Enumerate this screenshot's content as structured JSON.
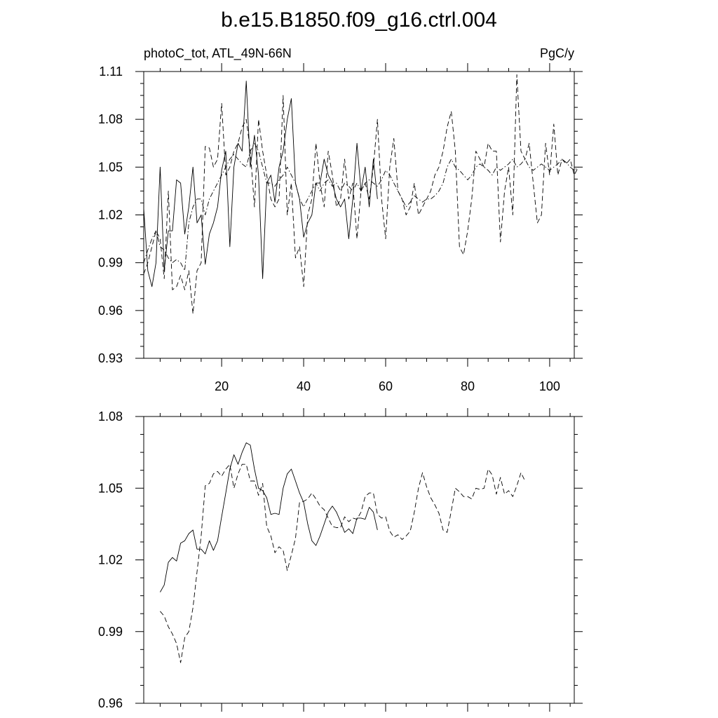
{
  "figure": {
    "title": "b.e15.B1850.f09_g16.ctrl.004"
  },
  "chart_data": [
    {
      "type": "line",
      "title": "b.e15.B1850.f09_g16.ctrl.004",
      "subtitle_left": "photoC_tot, ATL_49N-66N",
      "subtitle_right": "PgC/y",
      "xlabel": "",
      "ylabel": "",
      "xlim": [
        1,
        106
      ],
      "ylim": [
        0.93,
        1.11
      ],
      "x_ticks": [
        20,
        40,
        60,
        80,
        100
      ],
      "x_tick_labels": [
        "20",
        "40",
        "60",
        "80",
        "100"
      ],
      "y_ticks": [
        0.93,
        0.96,
        0.99,
        1.02,
        1.05,
        1.08,
        1.11
      ],
      "y_tick_labels": [
        "0.93",
        "0.96",
        "0.99",
        "1.02",
        "1.05",
        "1.08",
        "1.11"
      ],
      "grid": false,
      "legend": "none",
      "series": [
        {
          "style": "solid",
          "x_start": 1,
          "values": [
            1.024,
            0.985,
            0.975,
            0.99,
            1.05,
            0.985,
            1.01,
            1.01,
            1.042,
            1.04,
            1.008,
            1.025,
            1.05,
            1.015,
            1.02,
            0.989,
            1.008,
            1.015,
            1.025,
            1.048,
            1.06,
            1.0,
            1.05,
            1.065,
            1.06,
            1.104,
            1.05,
            1.07,
            1.045,
            0.98,
            1.04,
            1.045,
            1.028,
            1.05,
            1.06,
            1.08,
            1.093,
            1.04,
            1.03,
            1.006,
            1.015,
            1.02,
            1.04,
            1.04,
            1.055,
            1.045,
            1.04,
            1.03,
            1.025,
            1.03,
            1.005,
            1.03,
            1.065,
            1.035,
            1.05,
            1.025,
            1.055,
            1.03
          ]
        },
        {
          "style": "dashed",
          "x_start": 1,
          "values": [
            0.983,
            0.99,
            1.0,
            1.01,
            1.005,
            0.98,
            1.035,
            0.973,
            0.975,
            0.982,
            0.973,
            0.985,
            0.958,
            0.985,
            0.99,
            1.063,
            1.062,
            1.05,
            1.055,
            1.09,
            1.045,
            1.05,
            1.06,
            1.065,
            1.075,
            1.08,
            1.06,
            1.025,
            1.08,
            1.06,
            1.045,
            1.03,
            1.025,
            1.03,
            1.095,
            1.02,
            1.04,
            0.993,
            1.0,
            0.975,
            1.02,
            1.03,
            1.065,
            1.04,
            1.025,
            1.06,
            1.045,
            1.025,
            1.03,
            1.055,
            1.03,
            1.04,
            1.005,
            1.035,
            1.04,
            1.03,
            1.05,
            1.08,
            1.03,
            1.005,
            1.05,
            1.068,
            1.035,
            1.03,
            1.02,
            1.025,
            1.04,
            1.02,
            1.025,
            1.03,
            1.035,
            1.045,
            1.05,
            1.06,
            1.075,
            1.085,
            1.06,
            1.0,
            0.995,
            1.01,
            1.03,
            1.06,
            1.055,
            1.05,
            1.065,
            1.06,
            1.06,
            1.003,
            1.035,
            1.05,
            1.02,
            1.108,
            1.06,
            1.055,
            1.065,
            1.04,
            1.015,
            1.02,
            1.065,
            1.045,
            1.077,
            1.045,
            1.055,
            1.052,
            1.055,
            1.045,
            1.05
          ]
        },
        {
          "style": "dash-dot",
          "x_start": 1,
          "values": [
            0.99,
            0.998,
            1.005,
            1.01,
            1.0,
            0.998,
            0.993,
            0.99,
            0.992,
            0.99,
            0.985,
            1.015,
            1.025,
            1.03,
            1.03,
            1.02,
            1.03,
            1.035,
            1.04,
            1.045,
            1.05,
            1.055,
            1.058,
            1.055,
            1.052,
            1.05,
            1.06,
            1.065,
            1.06,
            1.05,
            1.04,
            1.04,
            1.038,
            1.042,
            1.045,
            1.05,
            1.045,
            1.04,
            1.03,
            1.025,
            1.03,
            1.035,
            1.04,
            1.035,
            1.04,
            1.042,
            1.038,
            1.04,
            1.035,
            1.04,
            1.038,
            1.035,
            1.04,
            1.035,
            1.04,
            1.042,
            1.04,
            1.038,
            1.042,
            1.048,
            1.045,
            1.04,
            1.035,
            1.03,
            1.025,
            1.028,
            1.032,
            1.03,
            1.028,
            1.03,
            1.03,
            1.032,
            1.035,
            1.04,
            1.05,
            1.055,
            1.05,
            1.048,
            1.045,
            1.042,
            1.045,
            1.05,
            1.052,
            1.05,
            1.048,
            1.045,
            1.05,
            1.048,
            1.05,
            1.052,
            1.055,
            1.05,
            1.052,
            1.055,
            1.05,
            1.048,
            1.05,
            1.052,
            1.05,
            1.048,
            1.05,
            1.052,
            1.055,
            1.053,
            1.05,
            1.048,
            1.05
          ]
        }
      ]
    },
    {
      "type": "line",
      "title": "",
      "xlabel": "",
      "ylabel": "",
      "xlim": [
        1,
        106
      ],
      "ylim": [
        0.96,
        1.08
      ],
      "x_ticks": [
        20,
        40,
        60,
        80,
        100
      ],
      "x_tick_labels": [],
      "y_ticks": [
        0.96,
        0.99,
        1.02,
        1.05,
        1.08
      ],
      "y_tick_labels": [
        "0.96",
        "0.99",
        "1.02",
        "1.05",
        "1.08"
      ],
      "grid": false,
      "legend": "none",
      "series": [
        {
          "style": "solid",
          "x_start": 5,
          "values": [
            1.0065,
            1.0095,
            1.019,
            1.021,
            1.0195,
            1.027,
            1.028,
            1.031,
            1.0325,
            1.0245,
            1.0245,
            1.0225,
            1.028,
            1.024,
            1.028,
            1.038,
            1.048,
            1.058,
            1.064,
            1.06,
            1.065,
            1.069,
            1.068,
            1.058,
            1.05,
            1.049,
            1.046,
            1.039,
            1.0395,
            1.039,
            1.05,
            1.056,
            1.058,
            1.053,
            1.048,
            1.044,
            1.035,
            1.028,
            1.026,
            1.03,
            1.035,
            1.04,
            1.0425,
            1.04,
            1.036,
            1.0315,
            1.033,
            1.031,
            1.0375,
            1.0375,
            1.037,
            1.042,
            1.04,
            1.0325
          ]
        },
        {
          "style": "dashed",
          "x_start": 5,
          "values": [
            0.9985,
            0.9965,
            0.992,
            0.989,
            0.985,
            0.977,
            0.9875,
            0.99,
            1.0,
            1.015,
            1.03,
            1.051,
            1.052,
            1.056,
            1.057,
            1.055,
            1.058,
            1.06,
            1.05,
            1.056,
            1.06,
            1.06,
            1.053,
            1.053,
            1.047,
            1.052,
            1.034,
            1.03,
            1.023,
            1.0255,
            1.024,
            1.0155,
            1.022,
            1.029,
            1.044,
            1.0445,
            1.0455,
            1.048,
            1.0455,
            1.0425,
            1.041,
            1.0375,
            1.034,
            1.0335,
            1.0335,
            1.038,
            1.036,
            1.0375,
            1.037,
            1.04,
            1.0465,
            1.048,
            1.048,
            1.039,
            1.0375,
            1.038,
            1.032,
            1.0295,
            1.0305,
            1.0285,
            1.03,
            1.032,
            1.04,
            1.05,
            1.0565,
            1.0505,
            1.046,
            1.043,
            1.0395,
            1.0325,
            1.0315,
            1.0405,
            1.05,
            1.0485,
            1.0465,
            1.0465,
            1.0455,
            1.05,
            1.0495,
            1.05,
            1.058,
            1.0555,
            1.0475,
            1.0545,
            1.0475,
            1.049,
            1.0465,
            1.051,
            1.0565,
            1.053
          ]
        }
      ]
    }
  ]
}
